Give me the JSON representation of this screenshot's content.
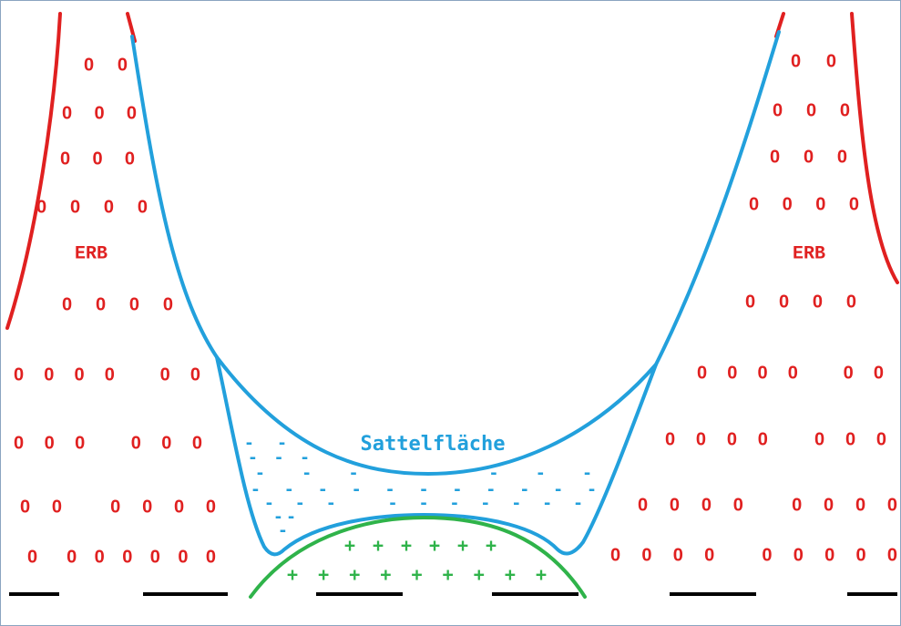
{
  "labels": {
    "left": "ERB",
    "right": "ERB",
    "center": "Sattelfläche"
  },
  "zeros": {
    "left": [
      "0 0",
      "0 0 0",
      "0 0 0",
      "0 0 0 0",
      "0 0 0 0",
      "0 0 0 0   0 0",
      "0 0 0   0 0 0",
      "0 0   0 0 0 0",
      "0  0 0 0 0 0 0"
    ],
    "right": [
      "0 0",
      "0 0 0",
      "0 0 0",
      "0 0 0 0",
      "0 0 0 0",
      "0 0 0 0   0 0",
      "0 0 0 0   0 0 0",
      "0 0 0 0   0 0 0 0",
      "0 0 0 0   0 0 0 0 0"
    ]
  },
  "minus": [
    "-  -",
    "- - -",
    "- - -   - - - -",
    "- - - - - - - - - - -",
    "- - -   - - - - - - -",
    "- -",
    "-"
  ],
  "plus": [
    "+ + + + + +",
    "+ + + + + + + + +"
  ]
}
